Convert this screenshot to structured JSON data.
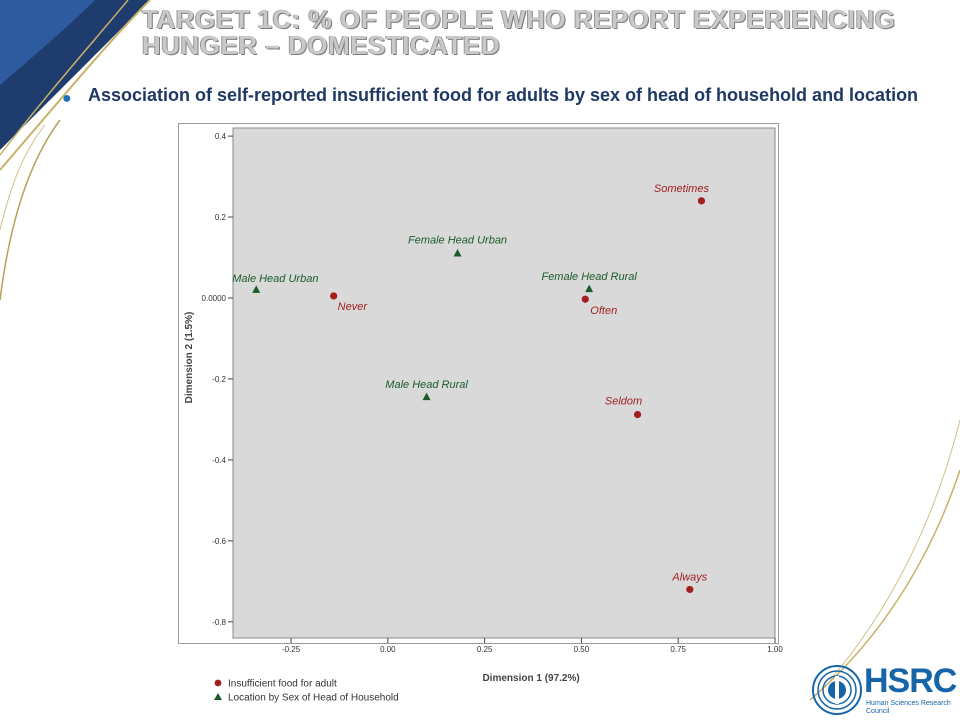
{
  "slide": {
    "title": "TARGET 1C: % OF PEOPLE WHO REPORT EXPERIENCING HUNGER – DOMESTICATED",
    "bullet": "Association of self-reported insufficient food for adults by sex of head of household and location"
  },
  "logo": {
    "name": "HSRC",
    "subtitle": "Human Sciences Research Council"
  },
  "colors": {
    "red_series": "#a31f1f",
    "green_series": "#1a5c2a",
    "plot_bg": "#d9d9d9",
    "title_navy": "#1f3864",
    "brand_blue": "#1565a8"
  },
  "chart_data": {
    "type": "scatter",
    "xlabel": "Dimension 1 (97.2%)",
    "ylabel": "Dimension 2 (1.5%)",
    "xlim": [
      -0.4,
      1.0
    ],
    "ylim": [
      -0.84,
      0.42
    ],
    "xticks": [
      -0.25,
      0.0,
      0.25,
      0.5,
      0.75,
      1.0
    ],
    "xtick_labels": [
      "-0.25",
      "0.00",
      "0.25",
      "0.50",
      "0.75",
      "1.00"
    ],
    "yticks": [
      0.4,
      0.2,
      0.0,
      -0.2,
      -0.4,
      -0.6,
      -0.8
    ],
    "ytick_labels": [
      "0.4",
      "0.2",
      "0.0000",
      "-0.2",
      "-0.4",
      "-0.6",
      "-0.8"
    ],
    "grid": false,
    "legend_position": "bottom-left",
    "series": [
      {
        "name": "Insufficient food for adult",
        "marker": "circle",
        "color": "#a31f1f",
        "points": [
          {
            "label": "Sometimes",
            "x": 0.81,
            "y": 0.24
          },
          {
            "label": "Never",
            "x": -0.14,
            "y": 0.005
          },
          {
            "label": "Often",
            "x": 0.51,
            "y": -0.003
          },
          {
            "label": "Seldom",
            "x": 0.645,
            "y": -0.288
          },
          {
            "label": "Always",
            "x": 0.78,
            "y": -0.72
          }
        ]
      },
      {
        "name": "Location by Sex of Head of Household",
        "marker": "triangle",
        "color": "#1a5c2a",
        "points": [
          {
            "label": "Female Head Urban",
            "x": 0.18,
            "y": 0.11
          },
          {
            "label": "Male Head Urban",
            "x": -0.34,
            "y": 0.02
          },
          {
            "label": "Female Head Rural",
            "x": 0.52,
            "y": 0.022
          },
          {
            "label": "Male Head Rural",
            "x": 0.1,
            "y": -0.245
          }
        ]
      }
    ]
  }
}
